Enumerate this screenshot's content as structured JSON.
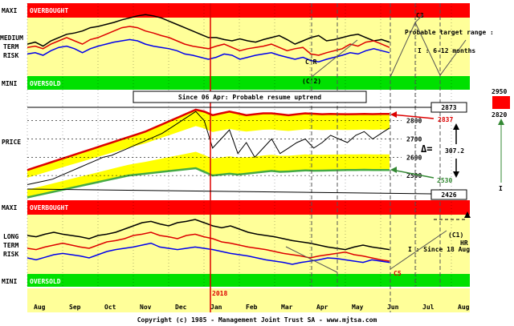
{
  "chart_data": {
    "type": "line",
    "copyright": "Copyright (c) 1985 - Management Joint Trust SA - www.mjtsa.com",
    "panels": {
      "medium": {
        "labels": [
          "MEDIUM",
          "TERM",
          "RISK"
        ],
        "maxi": "MAXI",
        "mini": "MINI",
        "overbought": "OVERBOUGHT",
        "oversold": "OVERSOLD",
        "target_title": "Probable target range :",
        "target_range": "I : 6-12 months",
        "cycle_c3": "C3",
        "cycle_c2": "(C'2)",
        "cycle_c2_top": "C'R"
      },
      "price": {
        "label": "PRICE",
        "note": "Since 06 Apr: Probable resume uptrend",
        "yticks": [
          2500,
          2600,
          2700,
          2800
        ],
        "level_top": "2873",
        "level_bottom": "2426",
        "red_level": "2837",
        "green_level": "2530",
        "delta_symbol": "Δ=",
        "delta_value": "307.2",
        "target_high": "2950",
        "target_low": "2820",
        "target_marker": "I"
      },
      "long": {
        "labels": [
          "LONG",
          "TERM",
          "RISK"
        ],
        "maxi": "MAXI",
        "mini": "MINI",
        "overbought": "OVERBOUGHT",
        "oversold": "OVERSOLD",
        "cycle_c1": "(C1)",
        "cycle_hr": "HR",
        "since_note": "I : Since 18 Aug",
        "cycle_c5": "C5"
      }
    },
    "year_label": "2018",
    "months": [
      "Aug",
      "Sep",
      "Oct",
      "Nov",
      "Dec",
      "Jan",
      "Feb",
      "Mar",
      "Apr",
      "May",
      "Jun",
      "Jul",
      "Aug"
    ],
    "colors": {
      "overbought": "#ff0000",
      "oversold": "#00e000",
      "background": "#ffff99",
      "black_series": "#000000",
      "red_series": "#dd0000",
      "blue_series": "#0000ee",
      "upper_band": "#ffff00",
      "lower_band": "#ffff00",
      "inner_band": "#ffffff",
      "long_ma": "#44aa44"
    },
    "series": {
      "medium_black": [
        55,
        52,
        58,
        50,
        45,
        40,
        38,
        35,
        30,
        28,
        25,
        22,
        18,
        15,
        12,
        10,
        12,
        15,
        20,
        25,
        30,
        35,
        40,
        45,
        45,
        48,
        50,
        47,
        50,
        52,
        48,
        45,
        42,
        48,
        55,
        50,
        45,
        42,
        50,
        48,
        45,
        42,
        40,
        45,
        50,
        48,
        52
      ],
      "medium_red": [
        60,
        58,
        62,
        55,
        50,
        45,
        50,
        55,
        48,
        45,
        40,
        35,
        30,
        28,
        30,
        35,
        38,
        42,
        45,
        50,
        55,
        58,
        60,
        62,
        58,
        55,
        60,
        65,
        62,
        60,
        58,
        55,
        60,
        65,
        62,
        60,
        70,
        72,
        68,
        65,
        62,
        55,
        58,
        52,
        50,
        55,
        60
      ],
      "medium_blue": [
        70,
        68,
        72,
        65,
        60,
        58,
        62,
        68,
        62,
        58,
        55,
        52,
        50,
        48,
        50,
        55,
        58,
        60,
        62,
        65,
        70,
        72,
        75,
        78,
        75,
        70,
        72,
        78,
        75,
        72,
        70,
        68,
        72,
        75,
        78,
        75,
        80,
        82,
        78,
        75,
        72,
        68,
        70,
        65,
        62,
        65,
        68
      ],
      "price_close": [
        2450,
        2460,
        2470,
        2480,
        2500,
        2520,
        2540,
        2560,
        2580,
        2600,
        2610,
        2630,
        2650,
        2670,
        2690,
        2710,
        2730,
        2760,
        2790,
        2820,
        2850,
        2800,
        2650,
        2700,
        2750,
        2620,
        2680,
        2600,
        2650,
        2700,
        2620,
        2650,
        2680,
        2700,
        2650,
        2680,
        2720,
        2700,
        2680,
        2720,
        2740,
        2700,
        2730,
        2760
      ],
      "price_band_top": [
        2530,
        2545,
        2560,
        2575,
        2590,
        2605,
        2620,
        2635,
        2650,
        2665,
        2680,
        2695,
        2710,
        2725,
        2740,
        2760,
        2780,
        2800,
        2820,
        2840,
        2860,
        2850,
        2830,
        2840,
        2850,
        2840,
        2830,
        2835,
        2840,
        2840,
        2835,
        2830,
        2835,
        2840,
        2838,
        2835,
        2837,
        2836,
        2835,
        2836,
        2837,
        2836,
        2837,
        2837
      ],
      "price_band_bottom": [
        2380,
        2390,
        2400,
        2410,
        2420,
        2430,
        2440,
        2450,
        2460,
        2470,
        2480,
        2490,
        2500,
        2505,
        2510,
        2515,
        2520,
        2525,
        2530,
        2535,
        2540,
        2520,
        2500,
        2505,
        2510,
        2505,
        2510,
        2515,
        2520,
        2525,
        2520,
        2522,
        2525,
        2528,
        2526,
        2527,
        2528,
        2529,
        2530,
        2530,
        2531,
        2530,
        2530,
        2530
      ],
      "long_black": [
        40,
        42,
        38,
        35,
        38,
        40,
        42,
        45,
        40,
        38,
        35,
        30,
        25,
        20,
        18,
        22,
        25,
        20,
        18,
        15,
        20,
        25,
        28,
        25,
        30,
        35,
        38,
        40,
        42,
        45,
        48,
        50,
        52,
        55,
        58,
        60,
        62,
        58,
        55,
        58,
        60,
        62
      ],
      "long_red": [
        60,
        62,
        58,
        55,
        52,
        55,
        58,
        60,
        55,
        50,
        48,
        45,
        40,
        38,
        35,
        40,
        42,
        45,
        40,
        38,
        42,
        45,
        50,
        52,
        55,
        58,
        60,
        62,
        65,
        68,
        70,
        72,
        75,
        72,
        70,
        68,
        66,
        70,
        72,
        75,
        78,
        80
      ],
      "long_blue": [
        75,
        78,
        74,
        70,
        68,
        70,
        72,
        75,
        70,
        65,
        62,
        60,
        58,
        55,
        52,
        58,
        60,
        62,
        60,
        58,
        60,
        62,
        65,
        68,
        70,
        72,
        75,
        78,
        80,
        82,
        85,
        82,
        80,
        78,
        75,
        76,
        78,
        80,
        82,
        78,
        80,
        82
      ]
    }
  }
}
